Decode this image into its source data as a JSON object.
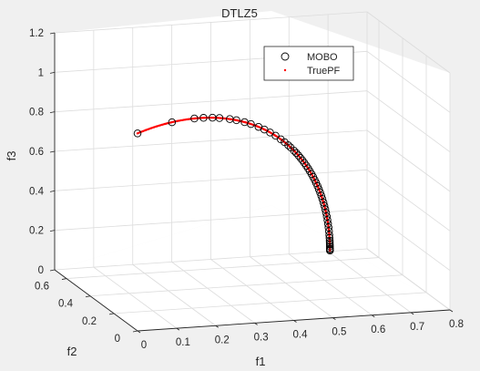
{
  "chart_data": {
    "type": "scatter3d",
    "title": "DTLZ5",
    "xlabel": "f1",
    "ylabel": "f2",
    "zlabel": "f3",
    "xlim": [
      0,
      0.8
    ],
    "ylim": [
      0,
      0.7
    ],
    "zlim": [
      0,
      1.2
    ],
    "x_ticks": [
      "0",
      "0.1",
      "0.2",
      "0.3",
      "0.4",
      "0.5",
      "0.6",
      "0.7",
      "0.8"
    ],
    "y_ticks": [
      "0",
      "0.2",
      "0.4",
      "0.6"
    ],
    "z_ticks": [
      "0",
      "0.2",
      "0.4",
      "0.6",
      "0.8",
      "1",
      "1.2"
    ],
    "grid": true,
    "legend_position": "top-right",
    "colors": {
      "mobo": "#000000",
      "truepf": "#ff0000",
      "background": "#f0f0f0",
      "axes": "#ffffff",
      "grid": "#dcdcdc"
    },
    "series": [
      {
        "name": "MOBO",
        "marker": "circle-open",
        "theta": [
          0.0,
          0.18,
          0.3,
          0.35,
          0.4,
          0.44,
          0.5,
          0.54,
          0.59,
          0.63,
          0.68,
          0.72,
          0.76,
          0.8,
          0.84,
          0.87,
          0.9,
          0.92,
          0.95,
          0.97,
          0.99,
          1.01,
          1.03,
          1.05,
          1.07,
          1.09,
          1.11,
          1.13,
          1.15,
          1.17,
          1.19,
          1.21,
          1.23,
          1.25,
          1.27,
          1.29,
          1.31,
          1.33,
          1.35,
          1.37,
          1.39,
          1.41,
          1.43,
          1.45,
          1.47,
          1.49,
          1.505,
          1.52,
          1.53,
          1.54,
          1.55,
          1.56,
          1.565,
          1.57
        ]
      },
      {
        "name": "TruePF",
        "marker": "dot",
        "count": 220
      }
    ]
  },
  "legend": {
    "items": [
      {
        "label": "MOBO"
      },
      {
        "label": "TruePF"
      }
    ]
  }
}
